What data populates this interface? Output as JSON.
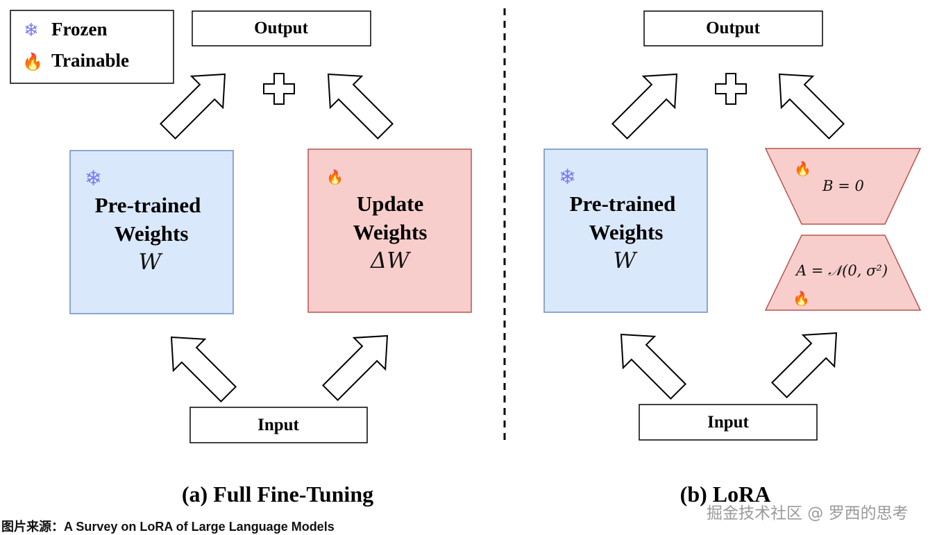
{
  "legend": {
    "frozen": "Frozen",
    "trainable": "Trainable",
    "frozen_icon": "snowflake-icon",
    "trainable_icon": "fire-icon"
  },
  "left": {
    "output": "Output",
    "input": "Input",
    "pretrained": {
      "line1": "Pre-trained",
      "line2": "Weights",
      "symbol": "W"
    },
    "update": {
      "line1": "Update",
      "line2": "Weights",
      "symbol": "ΔW"
    },
    "caption": "(a) Full Fine-Tuning"
  },
  "right": {
    "output": "Output",
    "input": "Input",
    "pretrained": {
      "line1": "Pre-trained",
      "line2": "Weights",
      "symbol": "W"
    },
    "b_matrix": "B = 0",
    "a_matrix": "A = 𝒩(0, σ²)",
    "caption": "(b) LoRA"
  },
  "source": "图片来源：A Survey on LoRA of Large Language Models",
  "watermark": "掘金技术社区 @ 罗西的思考",
  "colors": {
    "frozen_fill": "#dae8fc",
    "frozen_stroke": "#6c8ebf",
    "trainable_fill": "#f8cecc",
    "trainable_stroke": "#b85450",
    "snowflake": "#7b7bf0"
  }
}
